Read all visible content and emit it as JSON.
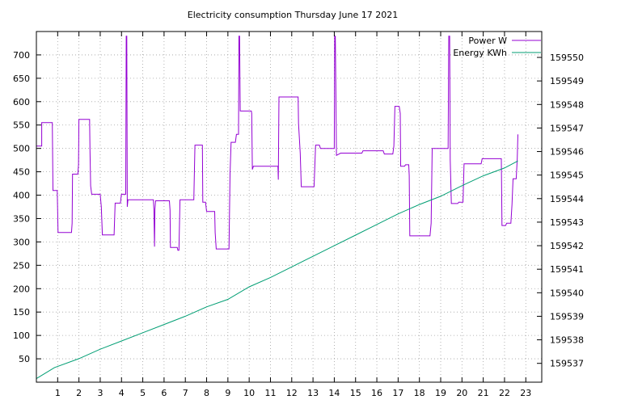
{
  "chart_data": {
    "type": "line",
    "title": "Electricity consumption Thursday June 17 2021",
    "xlabel": "",
    "ylabel": "",
    "xlim": [
      0,
      23.75
    ],
    "ylim": [
      0,
      750
    ],
    "y2lim": [
      159536.2,
      159551.1
    ],
    "x_ticks": [
      1,
      2,
      3,
      4,
      5,
      6,
      7,
      8,
      9,
      10,
      11,
      12,
      13,
      14,
      15,
      16,
      17,
      18,
      19,
      20,
      21,
      22,
      23
    ],
    "y_ticks": [
      50,
      100,
      150,
      200,
      250,
      300,
      350,
      400,
      450,
      500,
      550,
      600,
      650,
      700
    ],
    "y2_ticks": [
      159537,
      159538,
      159539,
      159540,
      159541,
      159542,
      159543,
      159544,
      159545,
      159546,
      159547,
      159548,
      159549,
      159550
    ],
    "grid": true,
    "legend_position": "top-right",
    "series": [
      {
        "name": "Power W",
        "axis": "left",
        "color": "#9400d3",
        "points": [
          [
            0.0,
            505
          ],
          [
            0.25,
            505
          ],
          [
            0.25,
            555
          ],
          [
            0.75,
            555
          ],
          [
            0.78,
            410
          ],
          [
            0.98,
            410
          ],
          [
            1.0,
            365
          ],
          [
            1.02,
            320
          ],
          [
            1.65,
            320
          ],
          [
            1.68,
            340
          ],
          [
            1.7,
            445
          ],
          [
            1.95,
            445
          ],
          [
            1.98,
            465
          ],
          [
            2.0,
            562
          ],
          [
            2.5,
            562
          ],
          [
            2.52,
            495
          ],
          [
            2.55,
            420
          ],
          [
            2.6,
            402
          ],
          [
            3.0,
            402
          ],
          [
            3.05,
            375
          ],
          [
            3.1,
            315
          ],
          [
            3.65,
            315
          ],
          [
            3.7,
            383
          ],
          [
            3.95,
            383
          ],
          [
            3.98,
            395
          ],
          [
            4.0,
            402
          ],
          [
            4.2,
            402
          ],
          [
            4.22,
            740
          ],
          [
            4.25,
            740
          ],
          [
            4.27,
            375
          ],
          [
            4.3,
            390
          ],
          [
            5.5,
            390
          ],
          [
            5.52,
            370
          ],
          [
            5.55,
            290
          ],
          [
            5.57,
            370
          ],
          [
            5.6,
            388
          ],
          [
            6.25,
            388
          ],
          [
            6.28,
            368
          ],
          [
            6.3,
            288
          ],
          [
            6.62,
            288
          ],
          [
            6.65,
            282
          ],
          [
            6.7,
            282
          ],
          [
            6.75,
            390
          ],
          [
            7.4,
            390
          ],
          [
            7.45,
            507
          ],
          [
            7.8,
            507
          ],
          [
            7.82,
            385
          ],
          [
            7.95,
            385
          ],
          [
            8.0,
            365
          ],
          [
            8.38,
            365
          ],
          [
            8.4,
            320
          ],
          [
            8.45,
            285
          ],
          [
            9.05,
            285
          ],
          [
            9.1,
            445
          ],
          [
            9.15,
            513
          ],
          [
            9.35,
            513
          ],
          [
            9.4,
            530
          ],
          [
            9.5,
            530
          ],
          [
            9.52,
            740
          ],
          [
            9.55,
            740
          ],
          [
            9.58,
            580
          ],
          [
            10.1,
            580
          ],
          [
            10.12,
            575
          ],
          [
            10.15,
            455
          ],
          [
            10.2,
            462
          ],
          [
            11.35,
            462
          ],
          [
            11.37,
            433
          ],
          [
            11.4,
            610
          ],
          [
            12.3,
            610
          ],
          [
            12.32,
            553
          ],
          [
            12.4,
            490
          ],
          [
            12.45,
            418
          ],
          [
            13.05,
            418
          ],
          [
            13.08,
            455
          ],
          [
            13.12,
            507
          ],
          [
            13.3,
            507
          ],
          [
            13.35,
            500
          ],
          [
            14.0,
            500
          ],
          [
            14.02,
            740
          ],
          [
            14.05,
            740
          ],
          [
            14.07,
            640
          ],
          [
            14.1,
            485
          ],
          [
            14.3,
            490
          ],
          [
            15.3,
            490
          ],
          [
            15.35,
            495
          ],
          [
            16.3,
            495
          ],
          [
            16.35,
            488
          ],
          [
            16.75,
            488
          ],
          [
            16.8,
            505
          ],
          [
            16.85,
            590
          ],
          [
            17.05,
            590
          ],
          [
            17.1,
            575
          ],
          [
            17.12,
            462
          ],
          [
            17.3,
            462
          ],
          [
            17.35,
            465
          ],
          [
            17.5,
            465
          ],
          [
            17.52,
            442
          ],
          [
            17.55,
            313
          ],
          [
            18.5,
            313
          ],
          [
            18.52,
            325
          ],
          [
            18.55,
            340
          ],
          [
            18.6,
            500
          ],
          [
            19.35,
            500
          ],
          [
            19.38,
            740
          ],
          [
            19.42,
            740
          ],
          [
            19.45,
            475
          ],
          [
            19.5,
            382
          ],
          [
            19.8,
            382
          ],
          [
            19.85,
            385
          ],
          [
            20.05,
            385
          ],
          [
            20.1,
            467
          ],
          [
            20.9,
            467
          ],
          [
            20.95,
            478
          ],
          [
            21.85,
            478
          ],
          [
            21.88,
            335
          ],
          [
            22.05,
            335
          ],
          [
            22.1,
            340
          ],
          [
            22.3,
            340
          ],
          [
            22.35,
            380
          ],
          [
            22.4,
            435
          ],
          [
            22.55,
            435
          ],
          [
            22.6,
            478
          ],
          [
            22.63,
            530
          ]
        ]
      },
      {
        "name": "Energy KWh",
        "axis": "right",
        "color": "#009e73",
        "points": [
          [
            0.0,
            159536.35
          ],
          [
            0.85,
            159536.82
          ],
          [
            2.0,
            159537.2
          ],
          [
            3.0,
            159537.6
          ],
          [
            4.0,
            159537.95
          ],
          [
            5.0,
            159538.3
          ],
          [
            6.0,
            159538.65
          ],
          [
            7.0,
            159539.0
          ],
          [
            8.0,
            159539.4
          ],
          [
            9.0,
            159539.72
          ],
          [
            10.0,
            159540.25
          ],
          [
            11.0,
            159540.65
          ],
          [
            12.0,
            159541.1
          ],
          [
            13.0,
            159541.55
          ],
          [
            14.0,
            159542.0
          ],
          [
            15.0,
            159542.45
          ],
          [
            16.0,
            159542.9
          ],
          [
            17.0,
            159543.35
          ],
          [
            18.0,
            159543.75
          ],
          [
            19.0,
            159544.1
          ],
          [
            20.0,
            159544.55
          ],
          [
            21.0,
            159544.97
          ],
          [
            22.0,
            159545.3
          ],
          [
            22.63,
            159545.6
          ]
        ]
      }
    ]
  }
}
